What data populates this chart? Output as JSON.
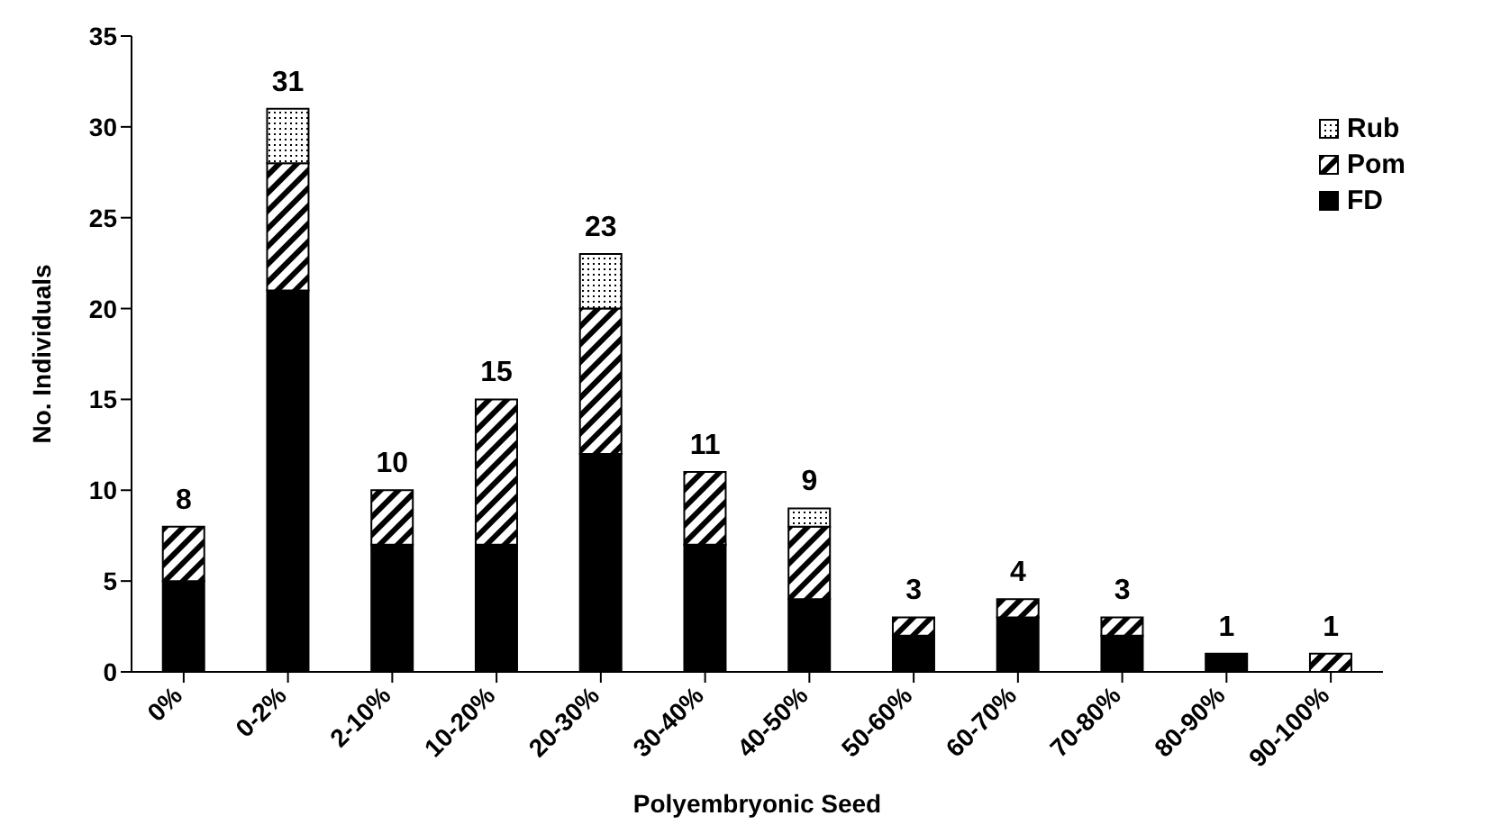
{
  "chart_data": {
    "type": "bar",
    "stacked": true,
    "xlabel": "Polyembryonic Seed",
    "ylabel": "No. Individuals",
    "categories": [
      "0%",
      "0-2%",
      "2-10%",
      "10-20%",
      "20-30%",
      "30-40%",
      "40-50%",
      "50-60%",
      "60-70%",
      "70-80%",
      "80-90%",
      "90-100%"
    ],
    "series": [
      {
        "name": "FD",
        "color": "#000000",
        "values": [
          5,
          21,
          7,
          7,
          12,
          7,
          4,
          2,
          3,
          2,
          1,
          0
        ]
      },
      {
        "name": "Pom",
        "color": "#000000",
        "values": [
          3,
          7,
          3,
          8,
          8,
          4,
          4,
          1,
          1,
          1,
          0,
          1
        ]
      },
      {
        "name": "Rub",
        "color": "#000000",
        "values": [
          0,
          3,
          0,
          0,
          3,
          0,
          1,
          0,
          0,
          0,
          0,
          0
        ]
      }
    ],
    "totals": [
      "8",
      "31",
      "10",
      "15",
      "23",
      "11",
      "9",
      "3",
      "4",
      "3",
      "1",
      "1"
    ],
    "ylim": [
      0,
      35
    ],
    "yticks": [
      0,
      5,
      10,
      15,
      20,
      25,
      30,
      35
    ],
    "grid": false,
    "legend": "top right"
  }
}
